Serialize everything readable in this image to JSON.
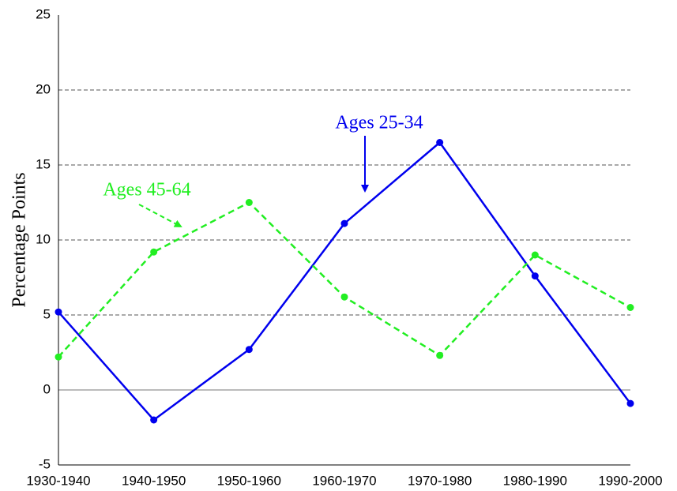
{
  "chart_data": {
    "type": "line",
    "y_label": "Percentage Points",
    "categories": [
      "1930-1940",
      "1940-1950",
      "1950-1960",
      "1960-1970",
      "1970-1980",
      "1980-1990",
      "1990-2000"
    ],
    "series": [
      {
        "name": "Ages 25-34",
        "color": "#0000ee",
        "dash": false,
        "values": [
          5.2,
          -2.0,
          2.7,
          11.1,
          16.5,
          7.6,
          -0.9
        ]
      },
      {
        "name": "Ages 45-64",
        "color": "#22ee22",
        "dash": true,
        "values": [
          2.2,
          9.2,
          12.5,
          6.2,
          2.3,
          9.0,
          5.5
        ]
      }
    ],
    "ylim": [
      -5,
      25
    ],
    "yticks": [
      -5,
      0,
      5,
      10,
      15,
      20,
      25
    ],
    "grid": true
  }
}
